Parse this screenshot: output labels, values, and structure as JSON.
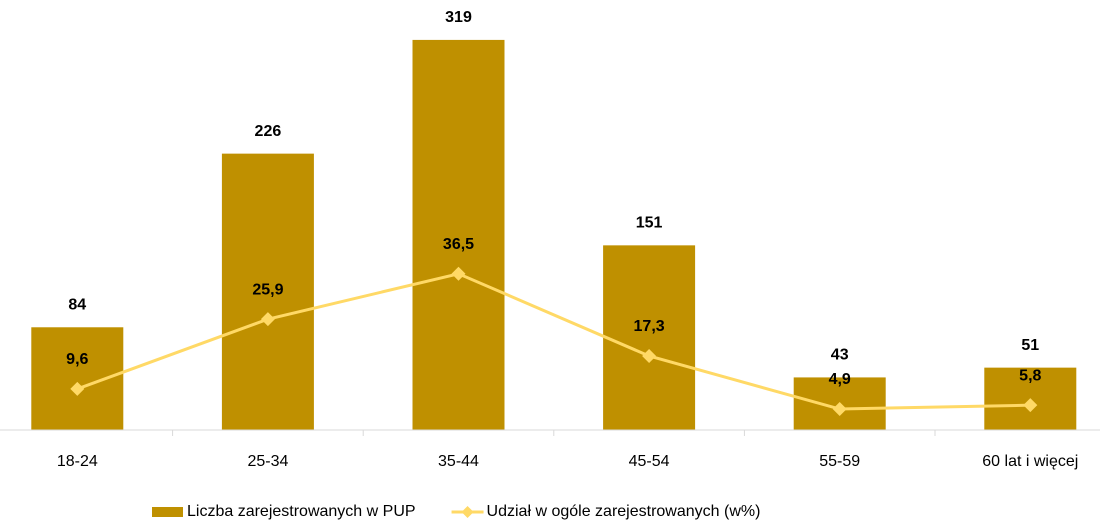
{
  "chart_data": {
    "type": "bar_line",
    "categories": [
      "18-24",
      "25-34",
      "35-44",
      "45-54",
      "55-59",
      "60 lat i więcej"
    ],
    "series": [
      {
        "name": "Liczba zarejestrowanych w PUP",
        "type": "bar",
        "color": "#bf9000",
        "values": [
          84,
          226,
          319,
          151,
          43,
          51
        ]
      },
      {
        "name": "Udział w ogóle zarejestrowanych (w%)",
        "type": "line",
        "axis": "y2",
        "color": "#ffd966",
        "values": [
          9.6,
          25.9,
          36.5,
          17.3,
          4.9,
          5.8
        ],
        "value_labels": [
          "9,6",
          "25,9",
          "36,5",
          "17,3",
          "4,9",
          "5,8"
        ]
      }
    ],
    "ylim": [
      0,
      350
    ],
    "y2lim": [
      0,
      100
    ],
    "legend": "bottom"
  }
}
